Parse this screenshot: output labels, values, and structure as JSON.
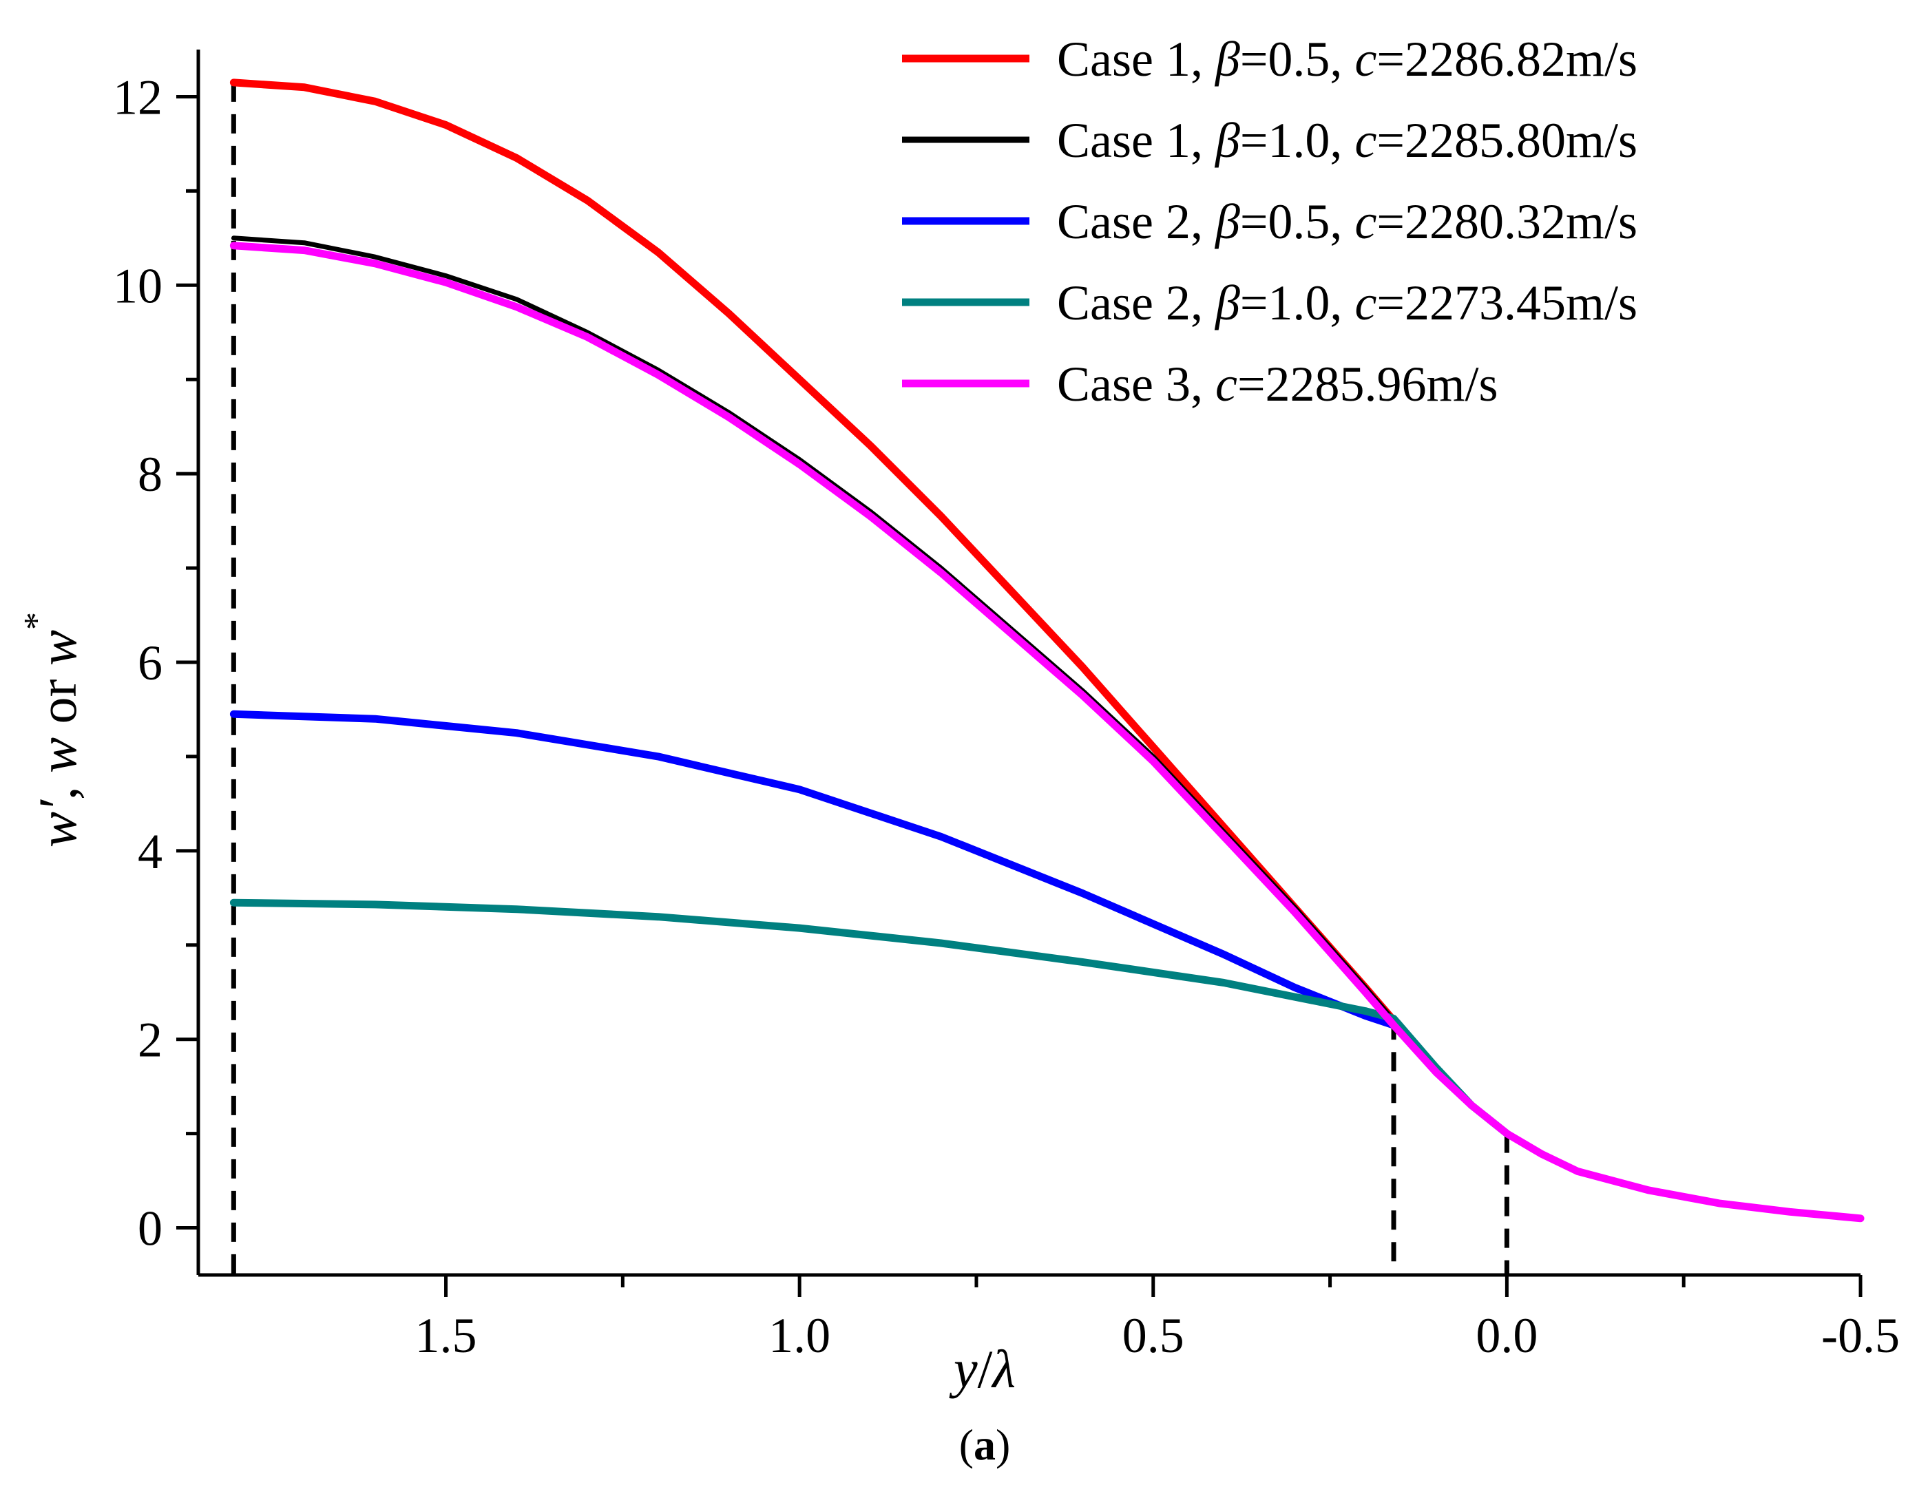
{
  "chart_data": {
    "type": "line",
    "xlabel_var": "y",
    "xlabel_sep": "/",
    "xlabel_den": "λ",
    "ylabel_parts": [
      "w′",
      ", ",
      "w",
      " or ",
      "w",
      "*"
    ],
    "caption": "(a)",
    "caption_bold": "a",
    "xlim": [
      1.85,
      -0.5
    ],
    "ylim": [
      -0.5,
      12.5
    ],
    "x_ticks": [
      1.5,
      1.0,
      0.5,
      0.0,
      -0.5
    ],
    "x_tick_labels": [
      "1.5",
      "1.0",
      "0.5",
      "0.0",
      "-0.5"
    ],
    "y_ticks": [
      0,
      2,
      4,
      6,
      8,
      10,
      12
    ],
    "y_tick_labels": [
      "0",
      "2",
      "4",
      "6",
      "8",
      "10",
      "12"
    ],
    "vlines": [
      1.8,
      0.16,
      0.0
    ],
    "legend_position": "top-right",
    "series": [
      {
        "name_pre": "Case 1, ",
        "name_sym": "β",
        "name_eq": "=0.5, ",
        "name_c": "c",
        "name_val": "=2286.82m/s",
        "color": "#ff0000",
        "x": [
          1.8,
          1.7,
          1.6,
          1.5,
          1.4,
          1.3,
          1.2,
          1.1,
          1.0,
          0.9,
          0.8,
          0.7,
          0.6,
          0.5,
          0.4,
          0.3,
          0.2,
          0.16
        ],
        "y": [
          12.15,
          12.1,
          11.95,
          11.7,
          11.35,
          10.9,
          10.35,
          9.7,
          9.0,
          8.3,
          7.55,
          6.75,
          5.95,
          5.1,
          4.25,
          3.4,
          2.55,
          2.2
        ]
      },
      {
        "name_pre": "Case 1, ",
        "name_sym": "β",
        "name_eq": "=1.0, ",
        "name_c": "c",
        "name_val": "=2285.80m/s",
        "color": "#000000",
        "x": [
          1.8,
          1.7,
          1.6,
          1.5,
          1.4,
          1.3,
          1.2,
          1.1,
          1.0,
          0.9,
          0.8,
          0.7,
          0.6,
          0.5,
          0.4,
          0.3,
          0.2,
          0.16
        ],
        "y": [
          10.5,
          10.45,
          10.3,
          10.1,
          9.85,
          9.5,
          9.1,
          8.65,
          8.15,
          7.6,
          7.0,
          6.35,
          5.7,
          5.0,
          4.2,
          3.4,
          2.55,
          2.2
        ]
      },
      {
        "name_pre": "Case 2, ",
        "name_sym": "β",
        "name_eq": "=0.5, ",
        "name_c": "c",
        "name_val": "=2280.32m/s",
        "color": "#0000ff",
        "x": [
          1.8,
          1.6,
          1.4,
          1.2,
          1.0,
          0.8,
          0.6,
          0.4,
          0.3,
          0.2,
          0.16
        ],
        "y": [
          5.45,
          5.4,
          5.25,
          5.0,
          4.65,
          4.15,
          3.55,
          2.9,
          2.55,
          2.25,
          2.15
        ]
      },
      {
        "name_pre": "Case 2, ",
        "name_sym": "β",
        "name_eq": "=1.0, ",
        "name_c": "c",
        "name_val": "=2273.45m/s",
        "color": "#008080",
        "x": [
          1.8,
          1.6,
          1.4,
          1.2,
          1.0,
          0.8,
          0.6,
          0.4,
          0.2,
          0.16,
          0.1,
          0.05,
          0.0
        ],
        "y": [
          3.45,
          3.43,
          3.38,
          3.3,
          3.18,
          3.02,
          2.82,
          2.6,
          2.3,
          2.22,
          1.7,
          1.3,
          1.0
        ]
      },
      {
        "name_pre": "Case 3,  ",
        "name_sym": "",
        "name_eq": "",
        "name_c": "c",
        "name_val": "=2285.96m/s",
        "color": "#ff00ff",
        "x": [
          1.8,
          1.7,
          1.6,
          1.5,
          1.4,
          1.3,
          1.2,
          1.1,
          1.0,
          0.9,
          0.8,
          0.7,
          0.6,
          0.5,
          0.4,
          0.3,
          0.2,
          0.16,
          0.1,
          0.05,
          0.0,
          -0.05,
          -0.1,
          -0.2,
          -0.3,
          -0.4,
          -0.5
        ],
        "y": [
          10.42,
          10.37,
          10.23,
          10.03,
          9.77,
          9.45,
          9.05,
          8.6,
          8.1,
          7.55,
          6.95,
          6.3,
          5.65,
          4.95,
          4.15,
          3.35,
          2.5,
          2.15,
          1.65,
          1.3,
          1.0,
          0.78,
          0.6,
          0.4,
          0.26,
          0.17,
          0.1
        ]
      }
    ]
  }
}
